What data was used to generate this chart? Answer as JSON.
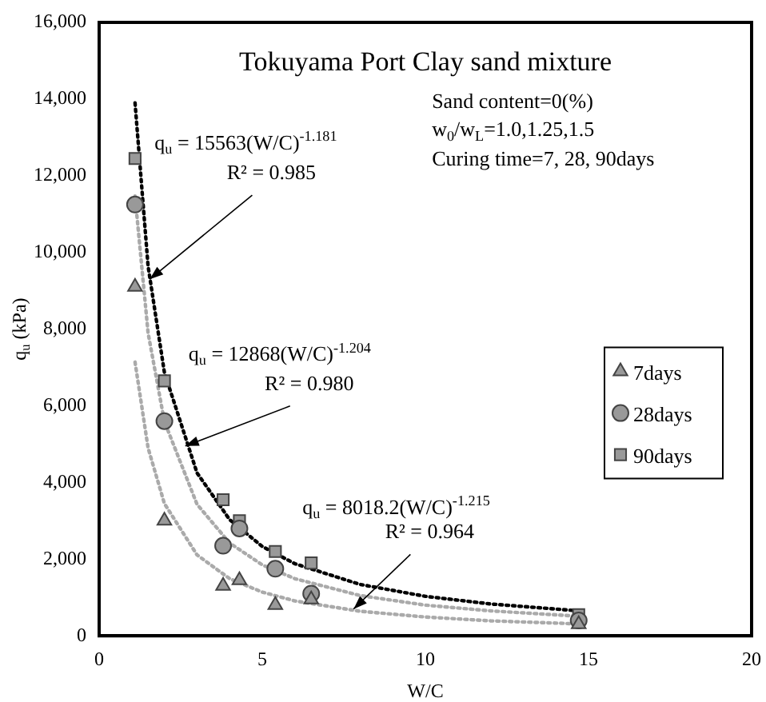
{
  "chart_data": {
    "type": "scatter",
    "title": "Tokuyama Port Clay sand mixture",
    "xlabel": "W/C",
    "ylabel": "q$_{u}$ (kPa)",
    "xlim": [
      0,
      20
    ],
    "xticks": [
      0,
      5,
      10,
      15,
      20
    ],
    "ylim": [
      0,
      16000
    ],
    "yticks": [
      {
        "value": 0,
        "label": "0"
      },
      {
        "value": 2000,
        "label": "2,000"
      },
      {
        "value": 4000,
        "label": "4,000"
      },
      {
        "value": 6000,
        "label": "6,000"
      },
      {
        "value": 8000,
        "label": "8,000"
      },
      {
        "value": 10000,
        "label": "10,000"
      },
      {
        "value": 12000,
        "label": "12,000"
      },
      {
        "value": 14000,
        "label": "14,000"
      },
      {
        "value": 16000,
        "label": "16,000"
      }
    ],
    "grid": false,
    "legend": "right",
    "series": [
      {
        "name": "7days",
        "type": "scatter",
        "marker": "triangle",
        "color": "#999999",
        "x": [
          1.1,
          2.0,
          3.8,
          4.3,
          5.4,
          6.5,
          14.7
        ],
        "values": [
          9100,
          3000,
          1300,
          1450,
          800,
          950,
          300
        ]
      },
      {
        "name": "28days",
        "type": "scatter",
        "marker": "circle",
        "color": "#999999",
        "x": [
          1.1,
          2.0,
          3.8,
          4.3,
          5.4,
          6.5,
          14.7
        ],
        "values": [
          11250,
          5600,
          2350,
          2800,
          1750,
          1100,
          400
        ]
      },
      {
        "name": "90days",
        "type": "scatter",
        "marker": "square",
        "color": "#999999",
        "x": [
          1.1,
          2.0,
          3.8,
          4.3,
          5.4,
          6.5,
          14.7
        ],
        "values": [
          12450,
          6650,
          3550,
          3000,
          2200,
          1900,
          550
        ]
      },
      {
        "type": "line",
        "marker": "none",
        "line_style": "dotted",
        "color": "#000000",
        "x": [
          1.1,
          1.5,
          2,
          3,
          4,
          5,
          6,
          8,
          10,
          12,
          14.7
        ],
        "values": [
          13900,
          9640,
          6870,
          4250,
          3030,
          2330,
          1880,
          1340,
          1030,
          830,
          650
        ]
      },
      {
        "type": "line",
        "marker": "none",
        "line_style": "dotted",
        "color": "#aaaaaa",
        "x": [
          1.1,
          1.5,
          2,
          3,
          4,
          5,
          6,
          8,
          10,
          12,
          14.7
        ],
        "values": [
          11470,
          7900,
          5590,
          3430,
          2420,
          1850,
          1490,
          1050,
          800,
          650,
          510
        ]
      },
      {
        "type": "line",
        "marker": "none",
        "line_style": "dotted",
        "color": "#aaaaaa",
        "x": [
          1.1,
          1.5,
          2,
          3,
          4,
          5,
          6,
          8,
          10,
          12,
          14.7
        ],
        "values": [
          7140,
          4900,
          3450,
          2110,
          1490,
          1140,
          910,
          640,
          490,
          390,
          310
        ]
      }
    ],
    "annotations": [
      "Sand content=0(%)",
      "w$_{0}$/w$_{L}$=1.0,1.25,1.5",
      "Curing time=7, 28, 90days",
      "q$_{u}$ = 15563(W/C)$^{-1.181}$",
      {
        "text": "R² = 0.985",
        "x": 1.55,
        "y": 9300
      },
      "q$_{u}$ = 12868(W/C)$^{-1.204}$",
      {
        "text": "R² = 0.980",
        "x": 2.64,
        "y": 4950
      },
      "q$_{u}$ = 8018.2(W/C)$^{-1.215}$",
      {
        "text": "R² = 0.964",
        "x": 7.8,
        "y": 700
      }
    ]
  }
}
